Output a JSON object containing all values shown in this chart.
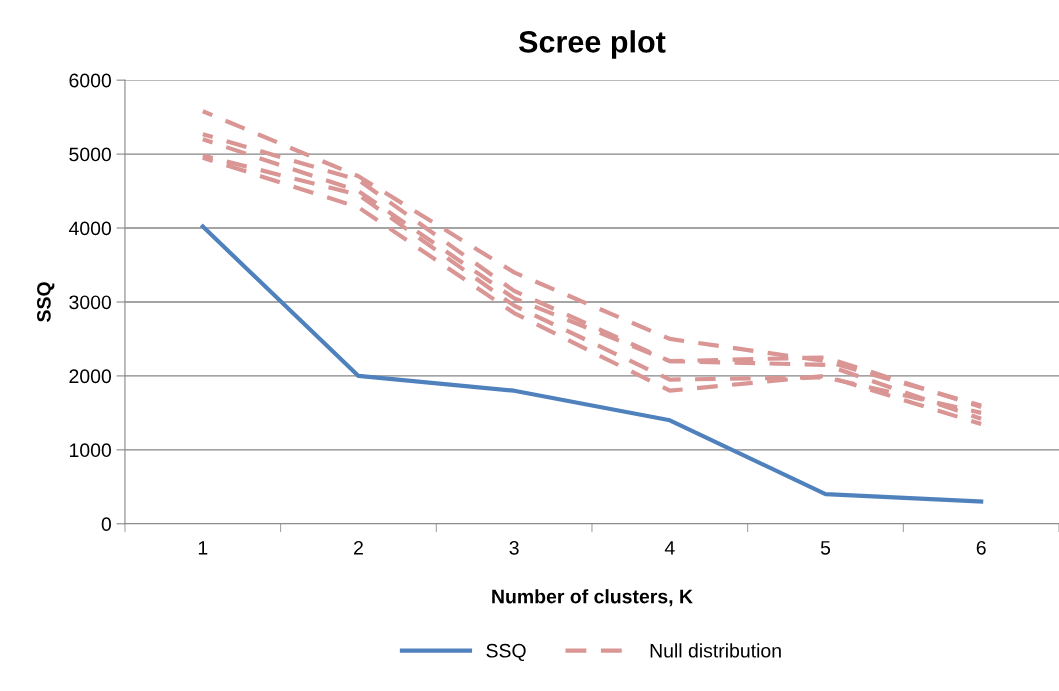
{
  "chart_data": {
    "type": "line",
    "title": "Scree plot",
    "xlabel": "Number of clusters, K",
    "ylabel": "SSQ",
    "categories": [
      "1",
      "2",
      "3",
      "4",
      "5",
      "6"
    ],
    "series": [
      {
        "name": "SSQ",
        "color": "#4f81bd",
        "values": [
          4020,
          2000,
          1800,
          1400,
          400,
          300
        ],
        "line_style": "solid"
      },
      {
        "name": "Null distribution",
        "color": "#d99694",
        "values": [
          5580,
          4700,
          3400,
          2500,
          2200,
          1600
        ],
        "line_style": "dashed"
      },
      {
        "color": "#d99694",
        "values": [
          5270,
          4650,
          3150,
          2200,
          2250,
          1580
        ],
        "line_style": "dashed"
      },
      {
        "color": "#d99694",
        "values": [
          5200,
          4500,
          3050,
          2200,
          2150,
          1420
        ],
        "line_style": "dashed"
      },
      {
        "color": "#d99694",
        "values": [
          4980,
          4450,
          2950,
          1950,
          1980,
          1500
        ],
        "line_style": "dashed"
      },
      {
        "color": "#d99694",
        "values": [
          4950,
          4280,
          2850,
          1800,
          2000,
          1350
        ],
        "line_style": "dashed"
      }
    ],
    "ylim": [
      0,
      6000
    ],
    "yticks": [
      0,
      1000,
      2000,
      3000,
      4000,
      5000,
      6000
    ],
    "grid": "y",
    "legend": "bottom",
    "marker": "none"
  }
}
